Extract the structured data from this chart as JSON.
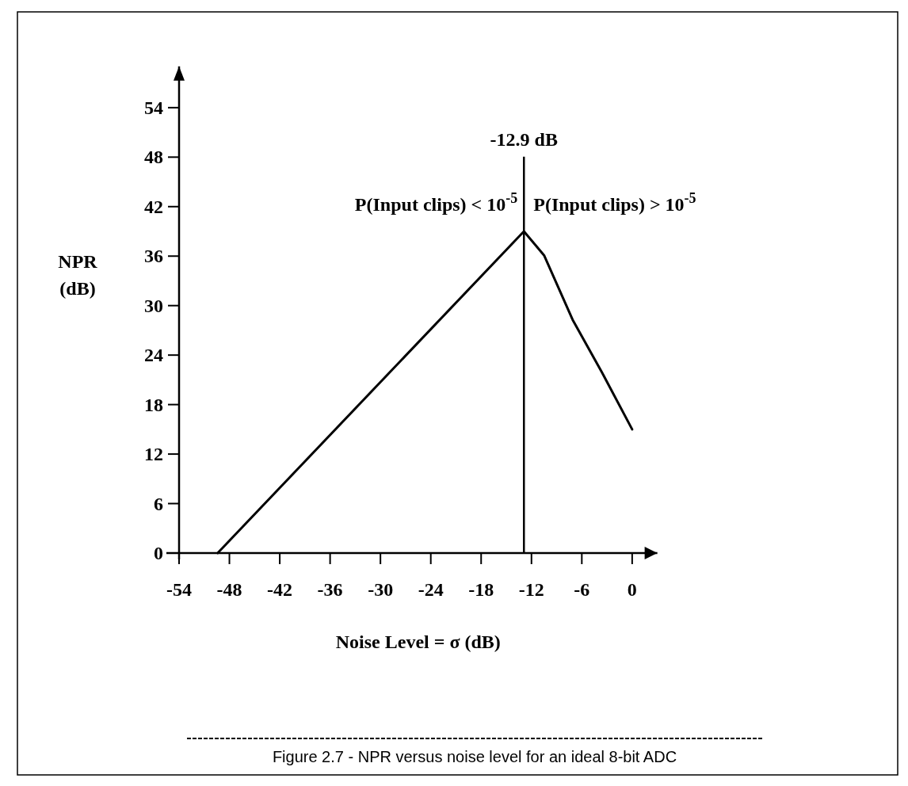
{
  "chart_data": {
    "type": "line",
    "xlabel": "Noise Level = σ (dB)",
    "ylabel": "NPR (dB)",
    "x": [
      -49.4,
      -12.9,
      -10.5,
      -7.1,
      -3.6,
      0
    ],
    "series": [
      {
        "color": "#000000",
        "values": [
          0,
          39,
          36.1,
          28.3,
          21.9,
          15
        ]
      }
    ],
    "xlim": [
      -54,
      3
    ],
    "xticks": [
      -54,
      -48,
      -42,
      -36,
      -30,
      -24,
      -18,
      -12,
      -6,
      0
    ],
    "ylim": [
      0,
      59
    ],
    "yticks": [
      0,
      6,
      12,
      18,
      24,
      30,
      36,
      42,
      48,
      54
    ],
    "ref_lines": [
      {
        "axis": "x",
        "value": -12.9,
        "label": "-12.9 dB"
      }
    ],
    "annotations": [
      "P(Input clips) < 10$^{-5}$",
      "P(Input clips) > 10$^{-5}$",
      "Figure 2.7 - NPR versus noise level for an ideal 8-bit ADC"
    ],
    "grid": false,
    "marker": "none",
    "line_style": "solid"
  }
}
